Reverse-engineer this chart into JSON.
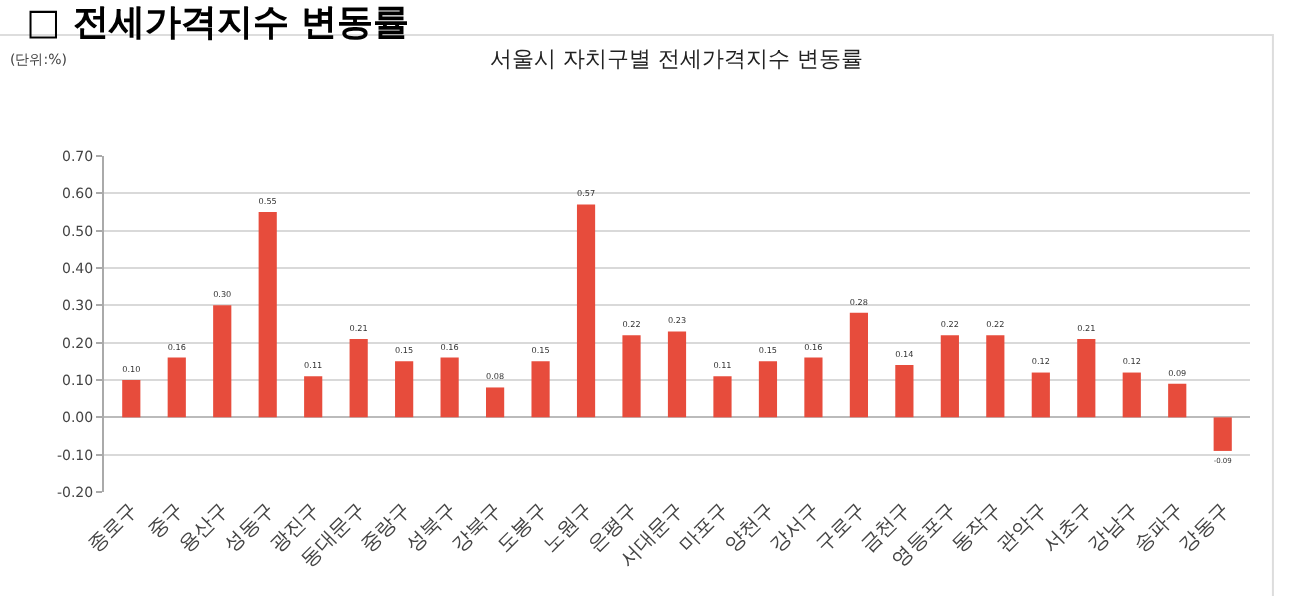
{
  "chart_data": {
    "type": "bar",
    "title": "□ 전세가격지수 변동률",
    "subtitle": "서울시 자치구별 전세가격지수 변동률",
    "annotations": [
      "(단위:%)"
    ],
    "categories": [
      "종로구",
      "중구",
      "용산구",
      "성동구",
      "광진구",
      "동대문구",
      "중랑구",
      "성북구",
      "강북구",
      "도봉구",
      "노원구",
      "은평구",
      "서대문구",
      "마포구",
      "양천구",
      "강서구",
      "구로구",
      "금천구",
      "영등포구",
      "동작구",
      "관악구",
      "서초구",
      "강남구",
      "송파구",
      "강동구"
    ],
    "values": [
      0.1,
      0.16,
      0.3,
      0.55,
      0.11,
      0.21,
      0.15,
      0.16,
      0.08,
      0.15,
      0.57,
      0.22,
      0.23,
      0.11,
      0.15,
      0.16,
      0.28,
      0.14,
      0.22,
      0.22,
      0.12,
      0.21,
      0.12,
      0.09,
      -0.09
    ],
    "value_labels": [
      "0.10",
      "0.16",
      "0.30",
      "0.55",
      "0.11",
      "0.21",
      "0.15",
      "0.16",
      "0.08",
      "0.15",
      "0.57",
      "0.22",
      "0.23",
      "0.11",
      "0.15",
      "0.16",
      "0.28",
      "0.14",
      "0.22",
      "0.22",
      "0.12",
      "0.21",
      "0.12",
      "0.09",
      "-0.09"
    ],
    "color": "#e74c3c",
    "ylim": [
      -0.2,
      0.7
    ],
    "yticks": [
      {
        "value": -0.2,
        "label": "-0.20"
      },
      {
        "value": -0.1,
        "label": "-0.10"
      },
      {
        "value": 0,
        "label": "0.00"
      },
      {
        "value": 0.1,
        "label": "0.10"
      },
      {
        "value": 0.2,
        "label": "0.20"
      },
      {
        "value": 0.3,
        "label": "0.30"
      },
      {
        "value": 0.4,
        "label": "0.40"
      },
      {
        "value": 0.5,
        "label": "0.50"
      },
      {
        "value": 0.6,
        "label": "0.60"
      },
      {
        "value": 0.7,
        "label": "0.70"
      }
    ],
    "grid": "y"
  }
}
